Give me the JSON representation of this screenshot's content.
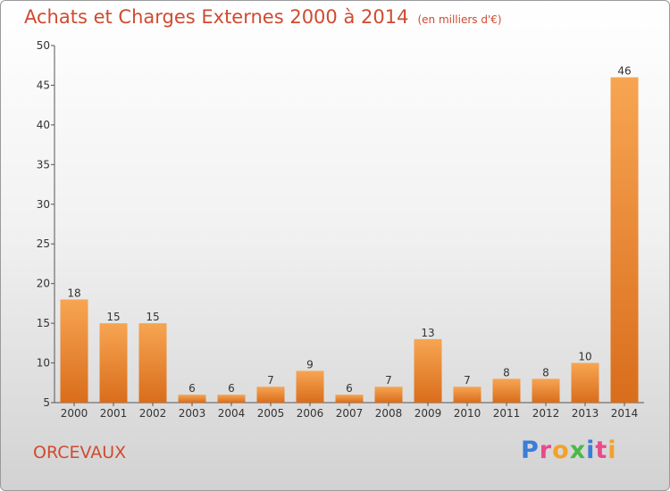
{
  "chart_data": {
    "type": "bar",
    "title": "Achats et Charges Externes 2000 à 2014",
    "subtitle": "(en milliers d'€)",
    "categories": [
      "2000",
      "2001",
      "2002",
      "2003",
      "2004",
      "2005",
      "2006",
      "2007",
      "2008",
      "2009",
      "2010",
      "2011",
      "2012",
      "2013",
      "2014"
    ],
    "values": [
      18,
      15,
      15,
      6,
      6,
      7,
      9,
      6,
      7,
      13,
      7,
      8,
      8,
      10,
      46
    ],
    "ylim": [
      5,
      50
    ],
    "yticks": [
      5,
      10,
      15,
      20,
      25,
      30,
      35,
      40,
      45,
      50
    ],
    "grid": false,
    "bar_color": "#e8832e"
  },
  "footer": {
    "location": "ORCEVAUX",
    "brand": "Proxiti",
    "brand_colors": [
      "#3a7dd8",
      "#e84a8a",
      "#f2a12a",
      "#4ab84a",
      "#3a7dd8",
      "#e84a8a",
      "#f2a12a"
    ]
  }
}
